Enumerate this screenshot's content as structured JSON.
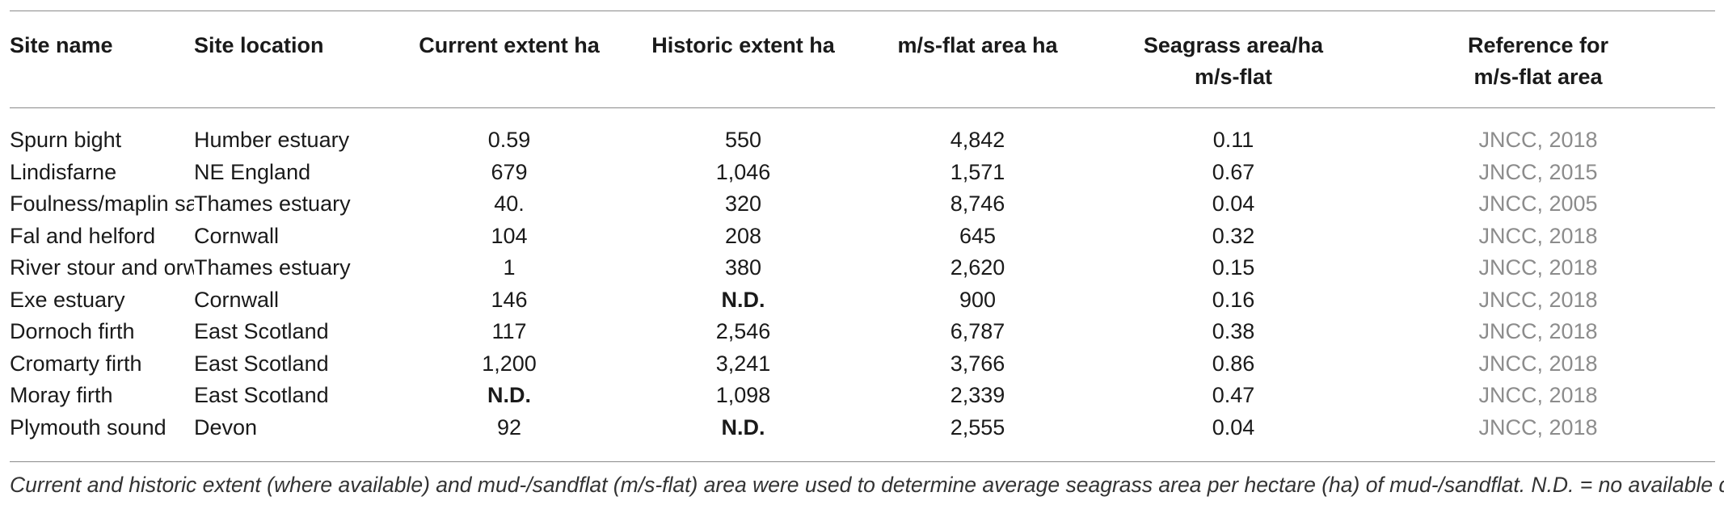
{
  "table": {
    "headers": [
      "Site name",
      "Site location",
      "Current extent ha",
      "Historic extent ha",
      "m/s-flat area ha",
      "Seagrass area/ha m/s-flat",
      "Reference for m/s-flat area"
    ],
    "header_lines": {
      "c5_line1": "Seagrass area/ha",
      "c5_line2": "m/s-flat",
      "c6_line1": "Reference for",
      "c6_line2": "m/s-flat area"
    },
    "rows": [
      [
        "Spurn bight",
        "Humber estuary",
        "0.59",
        "550",
        "4,842",
        "0.11",
        "JNCC, 2018"
      ],
      [
        "Lindisfarne",
        "NE England",
        "679",
        "1,046",
        "1,571",
        "0.67",
        "JNCC, 2015"
      ],
      [
        "Foulness/maplin sands",
        "Thames estuary",
        "40.",
        "320",
        "8,746",
        "0.04",
        "JNCC, 2005"
      ],
      [
        "Fal and helford",
        "Cornwall",
        "104",
        "208",
        "645",
        "0.32",
        "JNCC, 2018"
      ],
      [
        "River stour and orwell",
        "Thames estuary",
        "1",
        "380",
        "2,620",
        "0.15",
        "JNCC, 2018"
      ],
      [
        "Exe estuary",
        "Cornwall",
        "146",
        "N.D.",
        "900",
        "0.16",
        "JNCC, 2018"
      ],
      [
        "Dornoch firth",
        "East Scotland",
        "117",
        "2,546",
        "6,787",
        "0.38",
        "JNCC, 2018"
      ],
      [
        "Cromarty firth",
        "East Scotland",
        "1,200",
        "3,241",
        "3,766",
        "0.86",
        "JNCC, 2018"
      ],
      [
        "Moray firth",
        "East Scotland",
        "N.D.",
        "1,098",
        "2,339",
        "0.47",
        "JNCC, 2018"
      ],
      [
        "Plymouth sound",
        "Devon",
        "92",
        "N.D.",
        "2,555",
        "0.04",
        "JNCC, 2018"
      ]
    ]
  },
  "footnote": "Current and historic extent (where available) and mud-/sandflat (m/s-flat) area were used to determine average seagrass area per hectare (ha) of mud-/sandflat. N.D. = no available data",
  "colors": {
    "text": "#1a1a1a",
    "reference_text": "#8c8c8c",
    "rule": "#8a8a8a"
  }
}
